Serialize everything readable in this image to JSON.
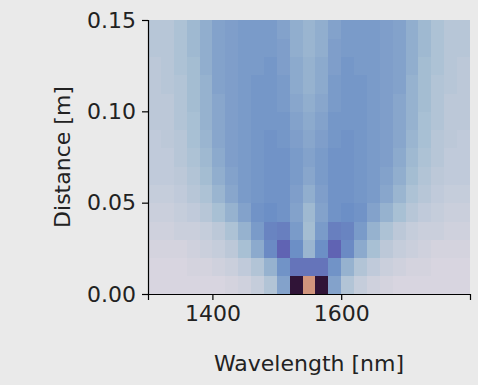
{
  "chart_data": {
    "type": "heatmap",
    "xlabel": "Wavelength [nm]",
    "ylabel": "Distance [m]",
    "xlim": [
      1300,
      1800
    ],
    "ylim": [
      0,
      0.15
    ],
    "xticks": [
      1400,
      1600
    ],
    "yticks": [
      {
        "value": 0,
        "label": "0.00"
      },
      {
        "value": 0.05,
        "label": "0.05"
      },
      {
        "value": 0.1,
        "label": "0.10"
      },
      {
        "value": 0.15,
        "label": "0.15"
      }
    ],
    "color": "twilight",
    "zlim": [
      0,
      1
    ],
    "x": [
      1310,
      1330,
      1350,
      1370,
      1390,
      1410,
      1430,
      1450,
      1470,
      1490,
      1510,
      1530,
      1550,
      1570,
      1590,
      1610,
      1630,
      1650,
      1670,
      1690,
      1710,
      1730,
      1750,
      1770,
      1790
    ],
    "y": [
      0.005,
      0.015,
      0.025,
      0.035,
      0.045,
      0.055,
      0.065,
      0.075,
      0.085,
      0.095,
      0.105,
      0.115,
      0.125,
      0.135,
      0.145
    ],
    "z": [
      [
        0.02,
        0.02,
        0.02,
        0.02,
        0.02,
        0.02,
        0.03,
        0.04,
        0.06,
        0.1,
        0.2,
        0.5,
        0.85,
        0.5,
        0.2,
        0.1,
        0.06,
        0.04,
        0.03,
        0.02,
        0.02,
        0.02,
        0.02,
        0.02,
        0.02
      ],
      [
        0.02,
        0.02,
        0.02,
        0.03,
        0.03,
        0.04,
        0.05,
        0.07,
        0.1,
        0.16,
        0.24,
        0.3,
        0.3,
        0.3,
        0.24,
        0.16,
        0.1,
        0.07,
        0.05,
        0.04,
        0.03,
        0.03,
        0.02,
        0.02,
        0.02
      ],
      [
        0.03,
        0.03,
        0.03,
        0.04,
        0.05,
        0.06,
        0.08,
        0.12,
        0.18,
        0.26,
        0.33,
        0.25,
        0.15,
        0.25,
        0.33,
        0.26,
        0.18,
        0.12,
        0.08,
        0.06,
        0.05,
        0.04,
        0.03,
        0.03,
        0.03
      ],
      [
        0.04,
        0.04,
        0.05,
        0.05,
        0.06,
        0.08,
        0.11,
        0.16,
        0.22,
        0.27,
        0.28,
        0.22,
        0.13,
        0.22,
        0.28,
        0.27,
        0.22,
        0.16,
        0.11,
        0.08,
        0.06,
        0.05,
        0.05,
        0.04,
        0.04
      ],
      [
        0.05,
        0.05,
        0.06,
        0.07,
        0.09,
        0.12,
        0.16,
        0.2,
        0.24,
        0.25,
        0.24,
        0.2,
        0.14,
        0.2,
        0.24,
        0.25,
        0.24,
        0.2,
        0.16,
        0.12,
        0.09,
        0.07,
        0.06,
        0.05,
        0.05
      ],
      [
        0.06,
        0.06,
        0.07,
        0.09,
        0.11,
        0.15,
        0.19,
        0.22,
        0.23,
        0.24,
        0.24,
        0.21,
        0.17,
        0.21,
        0.24,
        0.24,
        0.23,
        0.22,
        0.19,
        0.15,
        0.11,
        0.09,
        0.07,
        0.06,
        0.06
      ],
      [
        0.07,
        0.07,
        0.08,
        0.1,
        0.13,
        0.17,
        0.2,
        0.22,
        0.23,
        0.24,
        0.24,
        0.22,
        0.19,
        0.22,
        0.24,
        0.24,
        0.23,
        0.22,
        0.2,
        0.17,
        0.13,
        0.1,
        0.08,
        0.07,
        0.07
      ],
      [
        0.07,
        0.07,
        0.09,
        0.11,
        0.14,
        0.18,
        0.21,
        0.22,
        0.23,
        0.24,
        0.24,
        0.22,
        0.2,
        0.22,
        0.24,
        0.24,
        0.23,
        0.22,
        0.21,
        0.18,
        0.14,
        0.11,
        0.09,
        0.07,
        0.07
      ],
      [
        0.07,
        0.08,
        0.09,
        0.12,
        0.15,
        0.19,
        0.21,
        0.22,
        0.23,
        0.24,
        0.23,
        0.21,
        0.19,
        0.21,
        0.23,
        0.24,
        0.23,
        0.22,
        0.21,
        0.19,
        0.15,
        0.12,
        0.09,
        0.08,
        0.07
      ],
      [
        0.08,
        0.08,
        0.1,
        0.12,
        0.16,
        0.19,
        0.21,
        0.22,
        0.23,
        0.23,
        0.23,
        0.2,
        0.18,
        0.2,
        0.23,
        0.23,
        0.23,
        0.22,
        0.21,
        0.19,
        0.16,
        0.12,
        0.1,
        0.08,
        0.08
      ],
      [
        0.08,
        0.08,
        0.1,
        0.13,
        0.16,
        0.19,
        0.21,
        0.22,
        0.23,
        0.23,
        0.22,
        0.19,
        0.17,
        0.19,
        0.22,
        0.23,
        0.23,
        0.22,
        0.21,
        0.19,
        0.16,
        0.13,
        0.1,
        0.08,
        0.08
      ],
      [
        0.08,
        0.09,
        0.1,
        0.13,
        0.16,
        0.2,
        0.21,
        0.22,
        0.23,
        0.23,
        0.22,
        0.18,
        0.16,
        0.18,
        0.22,
        0.23,
        0.23,
        0.22,
        0.21,
        0.2,
        0.16,
        0.13,
        0.1,
        0.09,
        0.08
      ],
      [
        0.08,
        0.09,
        0.11,
        0.13,
        0.17,
        0.2,
        0.21,
        0.22,
        0.22,
        0.23,
        0.21,
        0.18,
        0.16,
        0.18,
        0.21,
        0.23,
        0.22,
        0.22,
        0.21,
        0.2,
        0.17,
        0.13,
        0.11,
        0.09,
        0.08
      ],
      [
        0.09,
        0.09,
        0.11,
        0.14,
        0.17,
        0.2,
        0.21,
        0.22,
        0.22,
        0.22,
        0.21,
        0.17,
        0.15,
        0.17,
        0.21,
        0.22,
        0.22,
        0.22,
        0.21,
        0.2,
        0.17,
        0.14,
        0.11,
        0.09,
        0.09
      ],
      [
        0.09,
        0.09,
        0.11,
        0.14,
        0.17,
        0.2,
        0.21,
        0.22,
        0.22,
        0.22,
        0.2,
        0.17,
        0.15,
        0.17,
        0.2,
        0.22,
        0.22,
        0.22,
        0.21,
        0.2,
        0.17,
        0.14,
        0.11,
        0.09,
        0.09
      ]
    ]
  }
}
